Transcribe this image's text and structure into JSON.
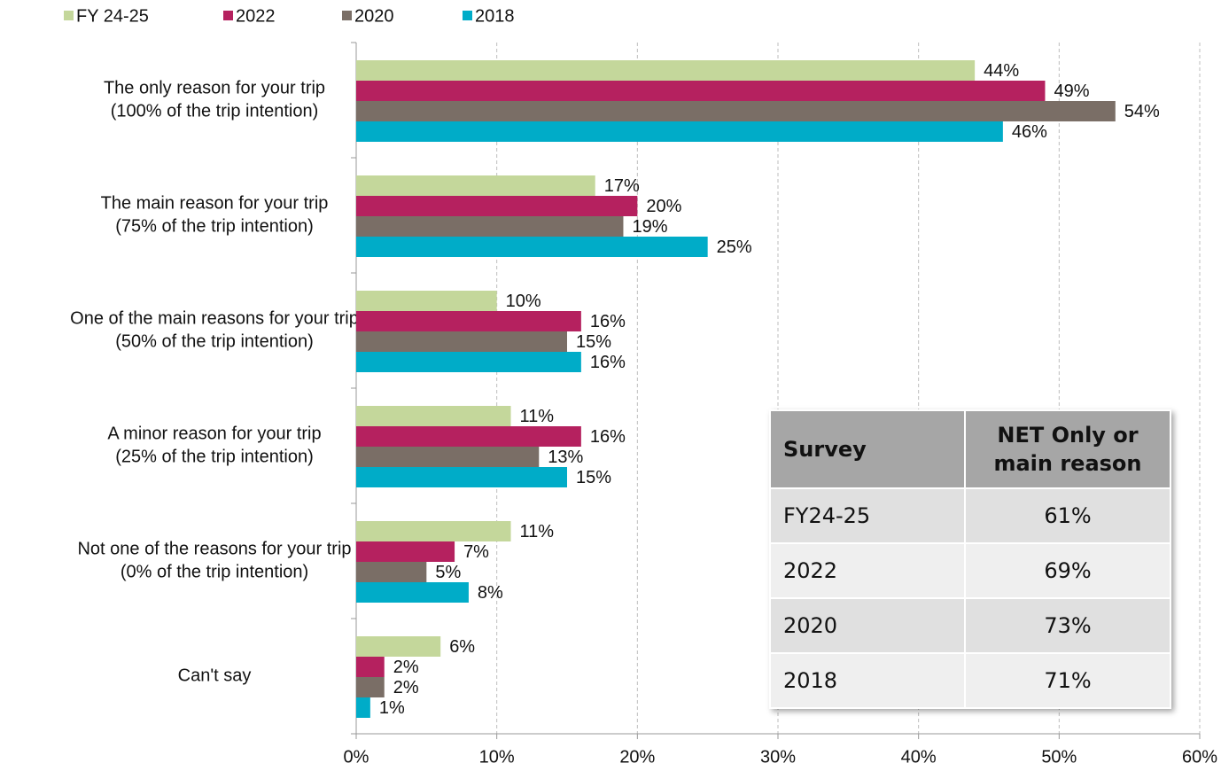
{
  "chart_data": {
    "type": "bar",
    "orientation": "horizontal",
    "categories": [
      [
        "The only reason for your trip",
        "(100% of the trip intention)"
      ],
      [
        "The main reason for your trip",
        "(75% of the trip intention)"
      ],
      [
        "One of the main reasons for your trip",
        "(50% of the trip intention)"
      ],
      [
        "A minor reason for your trip",
        "(25% of the trip intention)"
      ],
      [
        "Not one of the reasons for your trip",
        "(0% of the trip intention)"
      ],
      [
        "Can't say"
      ]
    ],
    "series": [
      {
        "name": "FY 24-25",
        "color": "#c4d79b",
        "values": [
          44,
          17,
          10,
          11,
          11,
          6
        ],
        "value_labels": [
          "44%",
          "17%",
          "10%",
          "11%",
          "11%",
          "6%"
        ]
      },
      {
        "name": "2022",
        "color": "#b5215f",
        "values": [
          49,
          20,
          16,
          16,
          7,
          2
        ],
        "value_labels": [
          "49%",
          "20%",
          "16%",
          "16%",
          "7%",
          "2%"
        ]
      },
      {
        "name": "2020",
        "color": "#7a6e66",
        "values": [
          54,
          19,
          15,
          13,
          5,
          2
        ],
        "value_labels": [
          "54%",
          "19%",
          "15%",
          "13%",
          "5%",
          "2%"
        ]
      },
      {
        "name": "2018",
        "color": "#00acc8",
        "values": [
          46,
          25,
          16,
          15,
          8,
          1
        ],
        "value_labels": [
          "46%",
          "25%",
          "16%",
          "15%",
          "8%",
          "1%"
        ]
      }
    ],
    "xlim": [
      0,
      60
    ],
    "xticks": [
      {
        "value": 0,
        "label": "0%"
      },
      {
        "value": 10,
        "label": "10%"
      },
      {
        "value": 20,
        "label": "20%"
      },
      {
        "value": 30,
        "label": "30%"
      },
      {
        "value": 40,
        "label": "40%"
      },
      {
        "value": 50,
        "label": "50%"
      },
      {
        "value": 60,
        "label": "60%"
      }
    ],
    "grid": true,
    "legend": "top-left"
  },
  "table": {
    "header": [
      "Survey",
      "NET Only or main reason"
    ],
    "rows": [
      [
        "FY24-25",
        "61%"
      ],
      [
        "2022",
        "69%"
      ],
      [
        "2020",
        "73%"
      ],
      [
        "2018",
        "71%"
      ]
    ]
  }
}
